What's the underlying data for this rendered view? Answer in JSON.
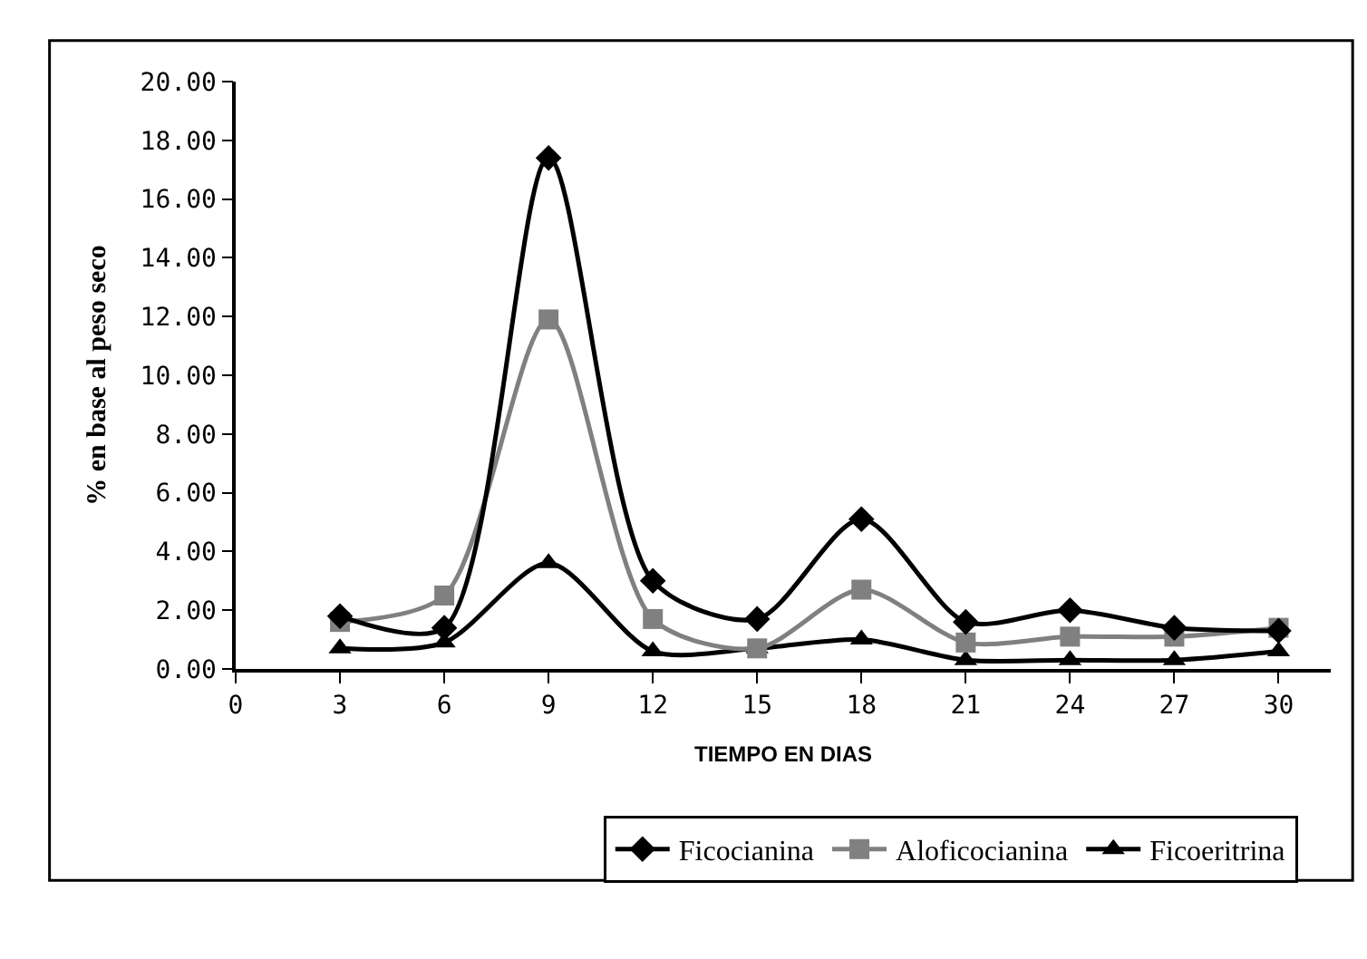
{
  "chart_data": {
    "type": "line",
    "xlabel": "TIEMPO EN DIAS",
    "ylabel": "% en base al peso seco",
    "x": [
      3,
      6,
      9,
      12,
      15,
      18,
      21,
      24,
      27,
      30
    ],
    "series": [
      {
        "name": "Ficocianina",
        "color": "#000000",
        "marker": "diamond",
        "values": [
          1.8,
          1.4,
          17.4,
          3.0,
          1.7,
          5.1,
          1.6,
          2.0,
          1.4,
          1.3
        ]
      },
      {
        "name": "Aloficocianina",
        "color": "#808080",
        "marker": "square",
        "values": [
          1.6,
          2.5,
          11.9,
          1.7,
          0.7,
          2.7,
          0.9,
          1.1,
          1.1,
          1.4
        ]
      },
      {
        "name": "Ficoeritrina",
        "color": "#000000",
        "marker": "triangle",
        "values": [
          0.7,
          0.9,
          3.6,
          0.6,
          0.7,
          1.0,
          0.3,
          0.3,
          0.3,
          0.6
        ]
      }
    ],
    "xlim": [
      0,
      31.5
    ],
    "xticks": [
      0,
      3,
      6,
      9,
      12,
      15,
      18,
      21,
      24,
      27,
      30
    ],
    "ylim": [
      0,
      20
    ],
    "yticks": [
      {
        "value": 0,
        "label": "0.00"
      },
      {
        "value": 2,
        "label": "2.00"
      },
      {
        "value": 4,
        "label": "4.00"
      },
      {
        "value": 6,
        "label": "6.00"
      },
      {
        "value": 8,
        "label": "8.00"
      },
      {
        "value": 10,
        "label": "10.00"
      },
      {
        "value": 12,
        "label": "12.00"
      },
      {
        "value": 14,
        "label": "14.00"
      },
      {
        "value": 16,
        "label": "16.00"
      },
      {
        "value": 18,
        "label": "18.00"
      },
      {
        "value": 20,
        "label": "20.00"
      }
    ],
    "legend": "bottom",
    "line_style": "solid"
  }
}
